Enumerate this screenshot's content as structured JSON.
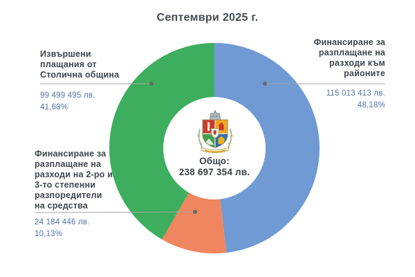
{
  "title": "Септември 2025 г.",
  "center": {
    "total_label": "Общо:",
    "total_value": "238 697 354 лв.",
    "emblem": "sofia-municipality-coat-of-arms"
  },
  "chart_data": {
    "type": "pie",
    "subtype": "donut",
    "title": "Септември 2025 г.",
    "center_label": "Общо: 238 697 354 лв.",
    "total_value": 238697354,
    "currency": "лв.",
    "start_angle_deg": 0,
    "direction": "clockwise",
    "legend_position": "callouts",
    "slices": [
      {
        "name": "Финансиране за разплащане на разходи към районите",
        "value": 115013413,
        "value_display": "115 013 413 лв.",
        "percent": 48.18,
        "percent_display": "48,18%",
        "color": "#6f9ad3"
      },
      {
        "name": "Финансиране за разплащане на разходи на 2-ро и 3-то степенни разпоредители на средства",
        "value": 24184446,
        "value_display": "24 184 446 лв.",
        "percent": 10.13,
        "percent_display": "10,13%",
        "color": "#ef8660"
      },
      {
        "name": "Извършени плащания от Столична община",
        "value": 99499495,
        "value_display": "99 499 495 лв.",
        "percent": 41.68,
        "percent_display": "41,68%",
        "color": "#3dae5d"
      }
    ]
  },
  "callouts": {
    "right": {
      "title": "Финансиране за\nразплащане на\nразходи към\nрайоните"
    },
    "left": {
      "title": "Извършени\nплащания от\nСтолична община"
    },
    "bottom_left": {
      "title": "Финансиране за\nразплащане на\nразходи на 2-ро и\n3-то степенни\nразпоредители\nна средства"
    }
  },
  "colors": {
    "slice_blue": "#6f9ad3",
    "slice_orange": "#ef8660",
    "slice_green": "#3dae5d",
    "label_text": "#3f454b",
    "value_text": "#5173a6",
    "title_text": "#45494e",
    "leader_line": "#a6a6a6",
    "leader_dot": "#6a6a6a",
    "background": "#ffffff"
  }
}
